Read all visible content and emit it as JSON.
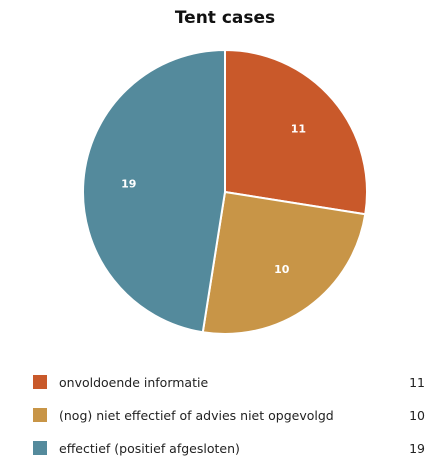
{
  "chart_data": {
    "type": "pie",
    "title": "Tent cases",
    "categories": [
      "onvoldoende informatie",
      "(nog) niet effectief of advies niet opgevolgd",
      "effectief (positief afgesloten)"
    ],
    "values": [
      11,
      10,
      19
    ],
    "colors": [
      "#c9592a",
      "#c89547",
      "#548a9c"
    ],
    "start_angle_deg": 0,
    "direction": "clockwise",
    "data_labels": [
      "11",
      "10",
      "19"
    ],
    "legend_position": "bottom"
  }
}
